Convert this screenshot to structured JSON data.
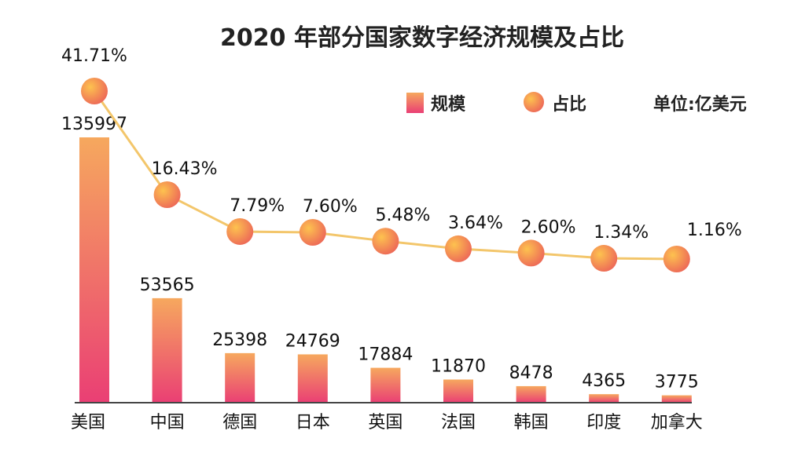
{
  "chart_data": {
    "type": "bar",
    "title": "2020 年部分国家数字经济规模及占比",
    "unit_label": "单位:亿美元",
    "categories": [
      "美国",
      "中国",
      "德国",
      "日本",
      "英国",
      "法国",
      "韩国",
      "印度",
      "加拿大"
    ],
    "series": [
      {
        "name": "规模",
        "type": "bar",
        "values": [
          135997,
          53565,
          25398,
          24769,
          17884,
          11870,
          8478,
          4365,
          3775
        ],
        "labels": [
          "135997",
          "53565",
          "25398",
          "24769",
          "17884",
          "11870",
          "8478",
          "4365",
          "3775"
        ]
      },
      {
        "name": "占比",
        "type": "line",
        "values": [
          41.71,
          16.43,
          7.79,
          7.6,
          5.48,
          3.64,
          2.6,
          1.34,
          1.16
        ],
        "labels": [
          "41.71%",
          "16.43%",
          "7.79%",
          "7.60%",
          "5.48%",
          "3.64%",
          "2.60%",
          "1.34%",
          "1.16%"
        ]
      }
    ],
    "legend_position": "top-right",
    "grid": false,
    "colors": {
      "bar_top": "#f6a85e",
      "bar_bottom": "#ea3f74",
      "marker_light": "#fdc24f",
      "marker_dark": "#ec6358",
      "line": "#f3c66b",
      "axis": "#444444"
    }
  }
}
